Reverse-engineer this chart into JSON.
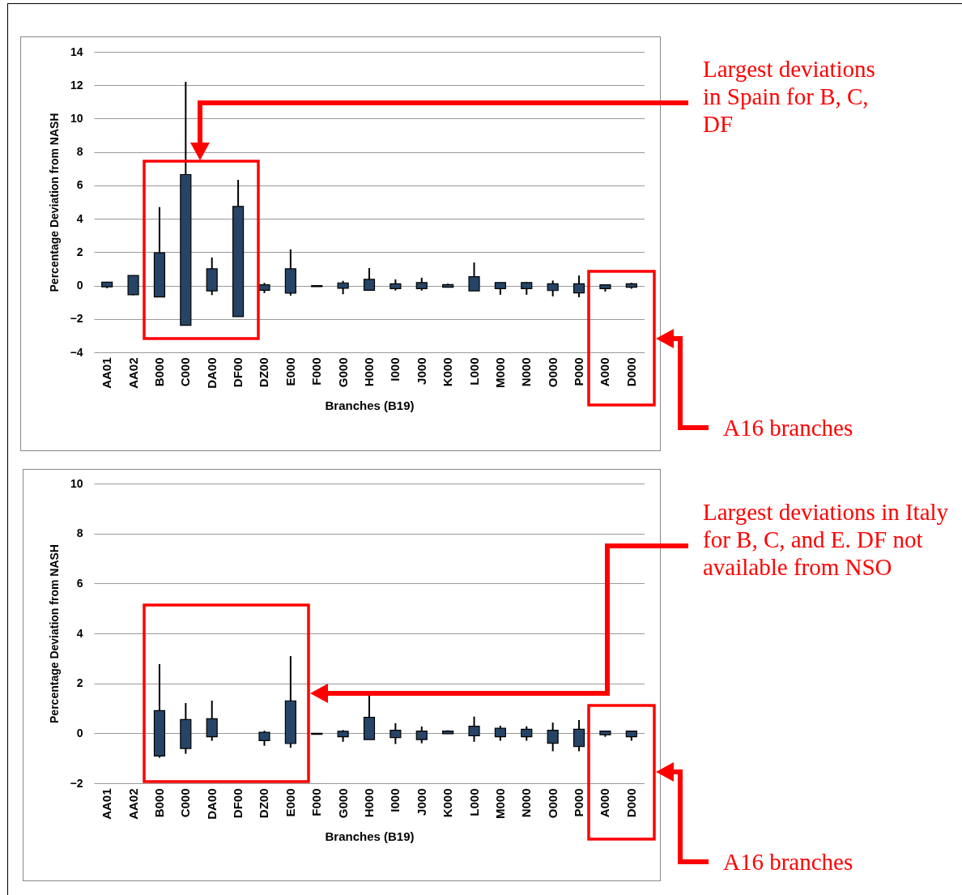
{
  "chart_data": [
    {
      "type": "candlestick",
      "xlabel": "Branches (B19)",
      "ylabel": "Percentage Deviation from NASH",
      "color": "#264466",
      "grid": "y",
      "categories": [
        "AA01",
        "AA02",
        "B000",
        "C000",
        "DA00",
        "DF00",
        "DZ00",
        "E000",
        "F000",
        "G000",
        "H000",
        "I000",
        "J000",
        "K000",
        "L000",
        "M000",
        "N000",
        "O000",
        "P000",
        "A000",
        "D000"
      ],
      "ylim": [
        -4,
        14
      ],
      "yticks": [
        -4,
        -2,
        0,
        2,
        4,
        6,
        8,
        10,
        12,
        14
      ],
      "ohlc": [
        [
          -0.08,
          0.2,
          -0.16,
          0.2
        ],
        [
          -0.55,
          0.6,
          -0.58,
          0.6
        ],
        [
          -0.68,
          4.7,
          -0.68,
          1.96
        ],
        [
          -2.38,
          12.2,
          -2.38,
          6.65
        ],
        [
          -0.32,
          1.68,
          -0.57,
          1.0
        ],
        [
          -1.86,
          6.33,
          -1.86,
          4.74
        ],
        [
          -0.28,
          0.16,
          -0.45,
          0.05
        ],
        [
          -0.45,
          2.17,
          -0.6,
          1.0
        ],
        [
          -0.06,
          0,
          -0.06,
          0
        ],
        [
          -0.16,
          0.28,
          -0.52,
          0.16
        ],
        [
          -0.28,
          1.04,
          -0.28,
          0.37
        ],
        [
          -0.19,
          0.37,
          -0.3,
          0.11
        ],
        [
          -0.19,
          0.47,
          -0.3,
          0.18
        ],
        [
          -0.1,
          0.11,
          -0.1,
          0.06
        ],
        [
          -0.32,
          1.38,
          -0.32,
          0.53
        ],
        [
          -0.19,
          0.18,
          -0.55,
          0.18
        ],
        [
          -0.19,
          0.21,
          -0.55,
          0.18
        ],
        [
          -0.3,
          0.3,
          -0.65,
          0.11
        ],
        [
          -0.44,
          0.6,
          -0.7,
          0.11
        ],
        [
          -0.19,
          0.05,
          -0.36,
          0.05
        ],
        [
          -0.1,
          0.16,
          -0.19,
          0.11
        ]
      ],
      "annotations": [
        "Largest deviations in Spain for B, C, DF",
        "A16 branches"
      ]
    },
    {
      "type": "candlestick",
      "xlabel": "Branches (B19)",
      "ylabel": "Percentage Deviation from NASH",
      "color": "#264466",
      "grid": "y",
      "categories": [
        "AA01",
        "AA02",
        "B000",
        "C000",
        "DA00",
        "DF00",
        "DZ00",
        "E000",
        "F000",
        "G000",
        "H000",
        "I000",
        "J000",
        "K000",
        "L000",
        "M000",
        "N000",
        "O000",
        "P000",
        "A000",
        "D000"
      ],
      "ylim": [
        -2,
        10
      ],
      "yticks": [
        -2,
        0,
        2,
        4,
        6,
        8,
        10
      ],
      "ohlc": [
        null,
        null,
        [
          -0.91,
          2.77,
          -0.98,
          0.91
        ],
        [
          -0.61,
          1.21,
          -0.82,
          0.55
        ],
        [
          -0.14,
          1.31,
          -0.3,
          0.58
        ],
        null,
        [
          -0.29,
          0.1,
          -0.5,
          0.04
        ],
        [
          -0.41,
          3.09,
          -0.58,
          1.3
        ],
        [
          -0.04,
          0,
          -0.04,
          0
        ],
        [
          -0.14,
          0.13,
          -0.34,
          0.08
        ],
        [
          -0.25,
          1.5,
          -0.25,
          0.64
        ],
        [
          -0.17,
          0.4,
          -0.43,
          0.12
        ],
        [
          -0.25,
          0.27,
          -0.4,
          0.09
        ],
        [
          -0.02,
          0.12,
          -0.02,
          0.09
        ],
        [
          -0.1,
          0.67,
          -0.34,
          0.28
        ],
        [
          -0.14,
          0.3,
          -0.3,
          0.2
        ],
        [
          -0.14,
          0.28,
          -0.3,
          0.16
        ],
        [
          -0.4,
          0.43,
          -0.72,
          0.12
        ],
        [
          -0.53,
          0.53,
          -0.72,
          0.16
        ],
        [
          -0.06,
          0.09,
          -0.14,
          0.09
        ],
        [
          -0.14,
          0.09,
          -0.3,
          0.09
        ]
      ],
      "annotations": [
        "Largest deviations in Italy for B, C, and E. DF not available from NSO",
        "A16 branches"
      ]
    }
  ]
}
